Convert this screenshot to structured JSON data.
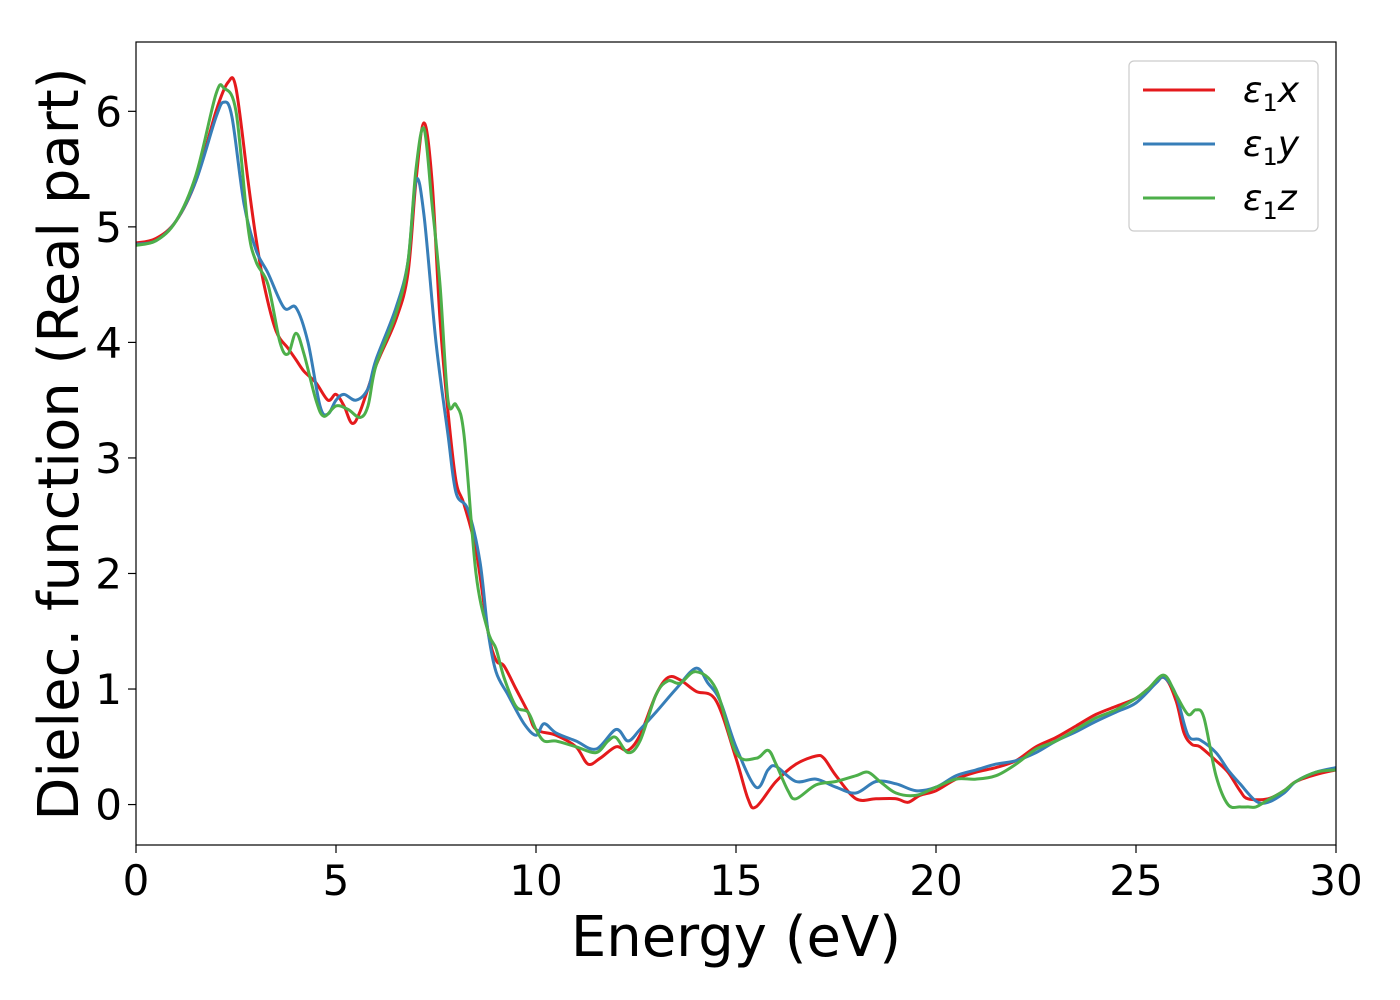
{
  "chart_data": {
    "type": "line",
    "title": "",
    "xlabel": "Energy (eV)",
    "ylabel": "Dielec. function (Real part)",
    "xlim": [
      0,
      30
    ],
    "ylim": [
      -0.35,
      6.6
    ],
    "xticks": [
      "0",
      "5",
      "10",
      "15",
      "20",
      "25",
      "30"
    ],
    "yticks": [
      "0",
      "1",
      "2",
      "3",
      "4",
      "5",
      "6"
    ],
    "grid": false,
    "legend_position": "top-right",
    "series": [
      {
        "name": "ε1x",
        "legend_base": "ε",
        "legend_sub": "1",
        "legend_suffix": "x",
        "color": "#e41a1c",
        "points": [
          [
            0,
            4.86
          ],
          [
            0.5,
            4.9
          ],
          [
            1.0,
            5.05
          ],
          [
            1.5,
            5.4
          ],
          [
            2.0,
            6.0
          ],
          [
            2.3,
            6.25
          ],
          [
            2.5,
            6.2
          ],
          [
            2.8,
            5.4
          ],
          [
            3.0,
            4.9
          ],
          [
            3.2,
            4.5
          ],
          [
            3.5,
            4.1
          ],
          [
            3.8,
            3.95
          ],
          [
            4.0,
            3.85
          ],
          [
            4.2,
            3.75
          ],
          [
            4.5,
            3.65
          ],
          [
            4.8,
            3.5
          ],
          [
            5.0,
            3.55
          ],
          [
            5.2,
            3.45
          ],
          [
            5.4,
            3.3
          ],
          [
            5.6,
            3.4
          ],
          [
            6.0,
            3.8
          ],
          [
            6.5,
            4.2
          ],
          [
            6.8,
            4.6
          ],
          [
            7.0,
            5.4
          ],
          [
            7.2,
            5.9
          ],
          [
            7.4,
            5.4
          ],
          [
            7.6,
            4.2
          ],
          [
            7.8,
            3.4
          ],
          [
            8.0,
            2.8
          ],
          [
            8.2,
            2.6
          ],
          [
            8.5,
            2.2
          ],
          [
            8.8,
            1.5
          ],
          [
            9.0,
            1.25
          ],
          [
            9.2,
            1.2
          ],
          [
            9.5,
            1.0
          ],
          [
            9.8,
            0.8
          ],
          [
            10.0,
            0.65
          ],
          [
            10.5,
            0.6
          ],
          [
            11.0,
            0.5
          ],
          [
            11.3,
            0.35
          ],
          [
            11.6,
            0.4
          ],
          [
            12.0,
            0.5
          ],
          [
            12.3,
            0.47
          ],
          [
            12.6,
            0.6
          ],
          [
            13.0,
            0.95
          ],
          [
            13.3,
            1.1
          ],
          [
            13.6,
            1.08
          ],
          [
            14.0,
            0.98
          ],
          [
            14.5,
            0.9
          ],
          [
            15.0,
            0.4
          ],
          [
            15.3,
            0.05
          ],
          [
            15.5,
            -0.02
          ],
          [
            16.0,
            0.2
          ],
          [
            16.5,
            0.35
          ],
          [
            17.0,
            0.42
          ],
          [
            17.2,
            0.4
          ],
          [
            17.5,
            0.25
          ],
          [
            18.0,
            0.05
          ],
          [
            18.5,
            0.05
          ],
          [
            19.0,
            0.05
          ],
          [
            19.3,
            0.02
          ],
          [
            19.6,
            0.08
          ],
          [
            20.0,
            0.12
          ],
          [
            20.5,
            0.22
          ],
          [
            21.0,
            0.28
          ],
          [
            21.5,
            0.32
          ],
          [
            22.0,
            0.38
          ],
          [
            22.5,
            0.5
          ],
          [
            23.0,
            0.58
          ],
          [
            23.5,
            0.68
          ],
          [
            24.0,
            0.78
          ],
          [
            24.5,
            0.85
          ],
          [
            25.0,
            0.92
          ],
          [
            25.3,
            1.0
          ],
          [
            25.7,
            1.1
          ],
          [
            26.0,
            0.9
          ],
          [
            26.2,
            0.62
          ],
          [
            26.4,
            0.52
          ],
          [
            26.6,
            0.5
          ],
          [
            27.0,
            0.38
          ],
          [
            27.3,
            0.28
          ],
          [
            27.6,
            0.12
          ],
          [
            27.8,
            0.05
          ],
          [
            28.3,
            0.05
          ],
          [
            28.7,
            0.12
          ],
          [
            29.0,
            0.2
          ],
          [
            29.5,
            0.26
          ],
          [
            30.0,
            0.3
          ]
        ]
      },
      {
        "name": "ε1y",
        "legend_base": "ε",
        "legend_sub": "1",
        "legend_suffix": "y",
        "color": "#377eb8",
        "points": [
          [
            0,
            4.85
          ],
          [
            0.5,
            4.88
          ],
          [
            1.0,
            5.05
          ],
          [
            1.5,
            5.4
          ],
          [
            2.0,
            5.95
          ],
          [
            2.2,
            6.08
          ],
          [
            2.4,
            5.95
          ],
          [
            2.7,
            5.2
          ],
          [
            3.0,
            4.8
          ],
          [
            3.3,
            4.6
          ],
          [
            3.7,
            4.3
          ],
          [
            4.0,
            4.3
          ],
          [
            4.3,
            4.0
          ],
          [
            4.6,
            3.45
          ],
          [
            4.8,
            3.38
          ],
          [
            5.0,
            3.5
          ],
          [
            5.2,
            3.55
          ],
          [
            5.5,
            3.5
          ],
          [
            5.8,
            3.6
          ],
          [
            6.0,
            3.85
          ],
          [
            6.5,
            4.3
          ],
          [
            6.8,
            4.7
          ],
          [
            7.0,
            5.4
          ],
          [
            7.2,
            5.1
          ],
          [
            7.5,
            4.0
          ],
          [
            7.8,
            3.2
          ],
          [
            8.0,
            2.7
          ],
          [
            8.3,
            2.55
          ],
          [
            8.6,
            2.1
          ],
          [
            8.8,
            1.5
          ],
          [
            9.0,
            1.15
          ],
          [
            9.3,
            0.95
          ],
          [
            9.7,
            0.7
          ],
          [
            10.0,
            0.6
          ],
          [
            10.2,
            0.7
          ],
          [
            10.5,
            0.62
          ],
          [
            11.0,
            0.55
          ],
          [
            11.5,
            0.48
          ],
          [
            12.0,
            0.65
          ],
          [
            12.3,
            0.55
          ],
          [
            12.6,
            0.65
          ],
          [
            13.0,
            0.8
          ],
          [
            13.5,
            1.0
          ],
          [
            14.0,
            1.18
          ],
          [
            14.3,
            1.05
          ],
          [
            14.6,
            0.9
          ],
          [
            15.0,
            0.5
          ],
          [
            15.5,
            0.15
          ],
          [
            15.8,
            0.3
          ],
          [
            16.0,
            0.33
          ],
          [
            16.5,
            0.2
          ],
          [
            17.0,
            0.22
          ],
          [
            17.5,
            0.15
          ],
          [
            18.0,
            0.1
          ],
          [
            18.5,
            0.2
          ],
          [
            19.0,
            0.18
          ],
          [
            19.5,
            0.12
          ],
          [
            20.0,
            0.15
          ],
          [
            20.5,
            0.25
          ],
          [
            21.0,
            0.3
          ],
          [
            21.5,
            0.35
          ],
          [
            22.0,
            0.38
          ],
          [
            22.5,
            0.45
          ],
          [
            23.0,
            0.55
          ],
          [
            23.5,
            0.63
          ],
          [
            24.0,
            0.72
          ],
          [
            24.5,
            0.8
          ],
          [
            25.0,
            0.88
          ],
          [
            25.5,
            1.05
          ],
          [
            25.7,
            1.1
          ],
          [
            26.0,
            0.95
          ],
          [
            26.3,
            0.6
          ],
          [
            26.6,
            0.56
          ],
          [
            27.0,
            0.45
          ],
          [
            27.3,
            0.3
          ],
          [
            27.6,
            0.18
          ],
          [
            28.0,
            0.03
          ],
          [
            28.3,
            0.02
          ],
          [
            28.7,
            0.1
          ],
          [
            29.0,
            0.2
          ],
          [
            29.5,
            0.28
          ],
          [
            30.0,
            0.32
          ]
        ]
      },
      {
        "name": "ε1z",
        "legend_base": "ε",
        "legend_sub": "1",
        "legend_suffix": "z",
        "color": "#4daf4a",
        "points": [
          [
            0,
            4.84
          ],
          [
            0.5,
            4.88
          ],
          [
            1.0,
            5.05
          ],
          [
            1.5,
            5.45
          ],
          [
            2.0,
            6.15
          ],
          [
            2.2,
            6.2
          ],
          [
            2.5,
            6.0
          ],
          [
            2.8,
            5.0
          ],
          [
            3.0,
            4.7
          ],
          [
            3.3,
            4.5
          ],
          [
            3.6,
            4.0
          ],
          [
            3.8,
            3.9
          ],
          [
            4.0,
            4.08
          ],
          [
            4.2,
            3.9
          ],
          [
            4.5,
            3.5
          ],
          [
            4.7,
            3.36
          ],
          [
            5.0,
            3.45
          ],
          [
            5.3,
            3.42
          ],
          [
            5.6,
            3.35
          ],
          [
            5.8,
            3.45
          ],
          [
            6.0,
            3.8
          ],
          [
            6.5,
            4.25
          ],
          [
            6.8,
            4.7
          ],
          [
            7.0,
            5.5
          ],
          [
            7.2,
            5.85
          ],
          [
            7.4,
            5.2
          ],
          [
            7.6,
            4.5
          ],
          [
            7.8,
            3.5
          ],
          [
            8.0,
            3.46
          ],
          [
            8.2,
            3.2
          ],
          [
            8.5,
            2.0
          ],
          [
            8.8,
            1.5
          ],
          [
            9.0,
            1.35
          ],
          [
            9.2,
            1.1
          ],
          [
            9.5,
            0.85
          ],
          [
            9.8,
            0.8
          ],
          [
            10.0,
            0.65
          ],
          [
            10.2,
            0.55
          ],
          [
            10.5,
            0.55
          ],
          [
            11.0,
            0.5
          ],
          [
            11.5,
            0.45
          ],
          [
            11.8,
            0.55
          ],
          [
            12.0,
            0.58
          ],
          [
            12.3,
            0.45
          ],
          [
            12.6,
            0.55
          ],
          [
            13.0,
            0.95
          ],
          [
            13.3,
            1.07
          ],
          [
            13.6,
            1.05
          ],
          [
            14.0,
            1.15
          ],
          [
            14.5,
            1.0
          ],
          [
            15.0,
            0.45
          ],
          [
            15.5,
            0.4
          ],
          [
            15.8,
            0.47
          ],
          [
            16.0,
            0.35
          ],
          [
            16.3,
            0.12
          ],
          [
            16.5,
            0.05
          ],
          [
            17.0,
            0.17
          ],
          [
            17.5,
            0.2
          ],
          [
            18.0,
            0.25
          ],
          [
            18.3,
            0.28
          ],
          [
            18.6,
            0.2
          ],
          [
            19.0,
            0.1
          ],
          [
            19.5,
            0.08
          ],
          [
            20.0,
            0.15
          ],
          [
            20.5,
            0.22
          ],
          [
            21.0,
            0.22
          ],
          [
            21.5,
            0.25
          ],
          [
            22.0,
            0.35
          ],
          [
            22.5,
            0.48
          ],
          [
            23.0,
            0.55
          ],
          [
            23.5,
            0.65
          ],
          [
            24.0,
            0.75
          ],
          [
            24.5,
            0.82
          ],
          [
            25.0,
            0.92
          ],
          [
            25.3,
            1.0
          ],
          [
            25.7,
            1.12
          ],
          [
            26.0,
            0.95
          ],
          [
            26.3,
            0.78
          ],
          [
            26.5,
            0.82
          ],
          [
            26.7,
            0.75
          ],
          [
            27.0,
            0.25
          ],
          [
            27.3,
            0.0
          ],
          [
            27.6,
            -0.02
          ],
          [
            27.8,
            -0.02
          ],
          [
            28.0,
            -0.02
          ],
          [
            28.3,
            0.04
          ],
          [
            28.7,
            0.12
          ],
          [
            29.0,
            0.2
          ],
          [
            29.5,
            0.28
          ],
          [
            30.0,
            0.3
          ]
        ]
      }
    ]
  }
}
